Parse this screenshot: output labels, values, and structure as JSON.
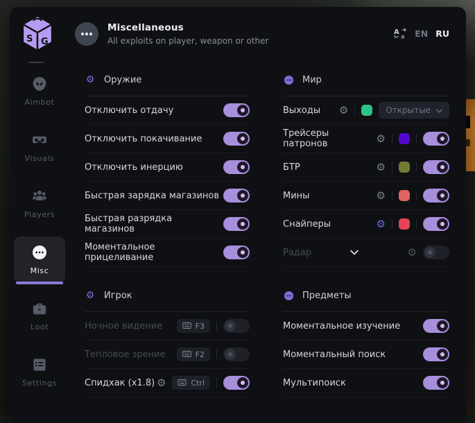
{
  "colors": {
    "accent": "#a78fdb",
    "accent_bar": "#8b78d9",
    "logo": "#b49df0"
  },
  "header": {
    "title": "Miscellaneous",
    "subtitle": "All exploits on player, weapon or other",
    "lang": {
      "en": "EN",
      "ru": "RU"
    }
  },
  "sidebar": {
    "items": [
      {
        "id": "aimbot",
        "label": "Aimbot",
        "icon": "alien",
        "active": false
      },
      {
        "id": "visuals",
        "label": "Visuals",
        "icon": "vr",
        "active": false
      },
      {
        "id": "players",
        "label": "Players",
        "icon": "players",
        "active": false
      },
      {
        "id": "misc",
        "label": "Misc",
        "icon": "dots-circle",
        "active": true
      },
      {
        "id": "loot",
        "label": "Loot",
        "icon": "briefcase",
        "active": false
      },
      {
        "id": "settings",
        "label": "Settings",
        "icon": "list",
        "active": false
      }
    ]
  },
  "columns": [
    {
      "sections": [
        {
          "id": "weapon",
          "icon": "gear",
          "title": "Оружие",
          "rows": [
            {
              "id": "no-recoil",
              "label": "Отключить отдачу",
              "toggle": true
            },
            {
              "id": "no-sway",
              "label": "Отключить покачивание",
              "toggle": true
            },
            {
              "id": "no-inertia",
              "label": "Отключить инерцию",
              "toggle": true
            },
            {
              "id": "fast-mag-load",
              "label": "Быстрая зарядка магазинов",
              "toggle": true
            },
            {
              "id": "fast-mag-unload",
              "label": "Быстрая разрядка магазинов",
              "toggle": true
            },
            {
              "id": "instant-ads",
              "label": "Моментальное прицеливание",
              "toggle": true
            }
          ]
        },
        {
          "id": "player",
          "icon": "gear",
          "title": "Игрок",
          "rows": [
            {
              "id": "night-vision",
              "label": "Ночное видение",
              "dimmed": true,
              "key": "F3",
              "toggle": false
            },
            {
              "id": "thermal-vision",
              "label": "Тепловое зрение",
              "dimmed": true,
              "key": "F2",
              "toggle": false
            },
            {
              "id": "speedhack",
              "label": "Спидхак (x1.8)",
              "gear": true,
              "key": "Ctrl",
              "toggle": true
            }
          ]
        }
      ]
    },
    {
      "sections": [
        {
          "id": "world",
          "icon": "dots",
          "title": "Мир",
          "rows": [
            {
              "id": "exits",
              "label": "Выходы",
              "gear": true,
              "swatch": "#2dc386",
              "dropdown": "Открытые"
            },
            {
              "id": "bullet-tracers",
              "label": "Трейсеры патронов",
              "gear": true,
              "swatch": "#5505d0",
              "toggle": true
            },
            {
              "id": "btr",
              "label": "БТР",
              "gear": true,
              "swatch": "#757a31",
              "toggle": true
            },
            {
              "id": "mines",
              "label": "Мины",
              "gear": true,
              "swatch": "#e0635f",
              "toggle": true
            },
            {
              "id": "snipers",
              "label": "Снайперы",
              "gear": true,
              "gear_accent": true,
              "swatch": "#e64456",
              "toggle": true
            },
            {
              "id": "radar",
              "label": "Радар",
              "dimmed": true,
              "chevron": true,
              "gear": true,
              "toggle": false
            }
          ]
        },
        {
          "id": "items",
          "icon": "dots",
          "title": "Предметы",
          "rows": [
            {
              "id": "instant-examine",
              "label": "Моментальное изучение",
              "toggle": true
            },
            {
              "id": "instant-search",
              "label": "Моментальный поиск",
              "toggle": true
            },
            {
              "id": "multi-search",
              "label": "Мультипоиск",
              "toggle": true
            }
          ]
        }
      ]
    }
  ]
}
